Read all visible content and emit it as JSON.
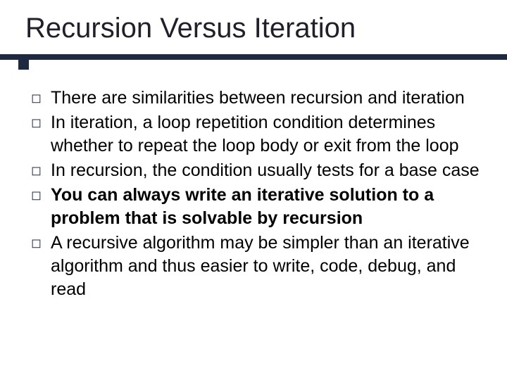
{
  "slide": {
    "title": "Recursion Versus Iteration",
    "title_color": "#20202a",
    "title_fontsize": 40,
    "rule_color": "#1f2a40",
    "bullet_glyph": "◻",
    "bullet_color": "#1f2a40",
    "body_fontsize": 25,
    "body_lineheight": 33,
    "background_color": "#ffffff",
    "items": [
      {
        "text": "There are similarities between recursion and iteration",
        "bold": false
      },
      {
        "text": "In iteration, a loop repetition condition determines whether to repeat the loop body or exit from the loop",
        "bold": false
      },
      {
        "text": "In recursion, the condition usually tests for a base case",
        "bold": false
      },
      {
        "text": "You can always write an iterative solution to a problem that is solvable by recursion",
        "bold": true
      },
      {
        "text": "A recursive algorithm may be simpler than an iterative algorithm and thus easier to write, code, debug, and read",
        "bold": false
      }
    ]
  }
}
